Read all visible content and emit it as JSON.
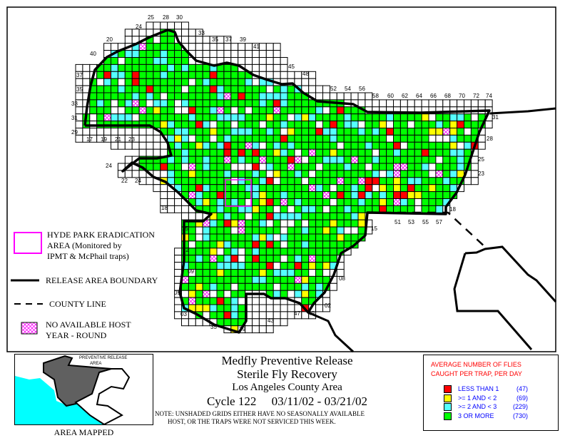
{
  "title": {
    "line1": "Medfly Preventive Release",
    "line2": "Sterile Fly Recovery",
    "line3": "Los Angeles County Area",
    "line4": "Cycle 122     03/11/02 - 03/21/02"
  },
  "note": "NOTE: UNSHADED GRIDS EITHER HAVE NO SEASONALLY AVAILABLE\n        HOST, OR THE TRAPS WERE NOT SERVICED THIS WEEK.",
  "inset": {
    "label": "PREVENTIVE RELEASE AREA",
    "caption": "AREA MAPPED",
    "colors": {
      "release": "#606060",
      "ocean": "#00ffff"
    }
  },
  "map_legend": {
    "hyde_park": "HYDE PARK ERADICATION AREA (Monitored by IPMT & McPhail traps)",
    "hyde_park_lines": [
      "HYDE PARK ERADICATION",
      "AREA (Monitored by",
      "IPMT & McPhail traps)"
    ],
    "boundary": "RELEASE AREA BOUNDARY",
    "county_line": "COUNTY LINE",
    "no_host_lines": [
      "NO AVAILABLE HOST",
      "YEAR - ROUND"
    ],
    "hyde_park_color": "#ff00ff"
  },
  "fly_legend": {
    "heading_lines": [
      "AVERAGE NUMBER OF FLIES",
      "CAUGHT PER TRAP, PER DAY"
    ],
    "items": [
      {
        "label": "LESS THAN 1",
        "count": "(47)",
        "color": "#ff0000"
      },
      {
        "label": ">= 1 AND < 2",
        "count": "(69)",
        "color": "#ffff00"
      },
      {
        "label": ">= 2 AND < 3",
        "count": "(229)",
        "color": "#55ffff"
      },
      {
        "label": "3 OR MORE",
        "count": "(730)",
        "color": "#00ff00"
      }
    ]
  },
  "grid_labels": [
    "25",
    "28",
    "30",
    "24",
    "20",
    "33",
    "35",
    "37",
    "39",
    "41",
    "45",
    "48",
    "52",
    "54",
    "56",
    "58",
    "60",
    "62",
    "64",
    "66",
    "68",
    "70",
    "72",
    "74",
    "40",
    "37",
    "35",
    "33",
    "31",
    "29",
    "17",
    "19",
    "21",
    "23",
    "24",
    "22",
    "24",
    "18",
    "15",
    "12",
    "09",
    "05",
    "03",
    "35",
    "39",
    "43",
    "47",
    "49",
    "02",
    "08",
    "15",
    "51",
    "53",
    "55",
    "57",
    "18",
    "23",
    "25",
    "28",
    "31"
  ]
}
